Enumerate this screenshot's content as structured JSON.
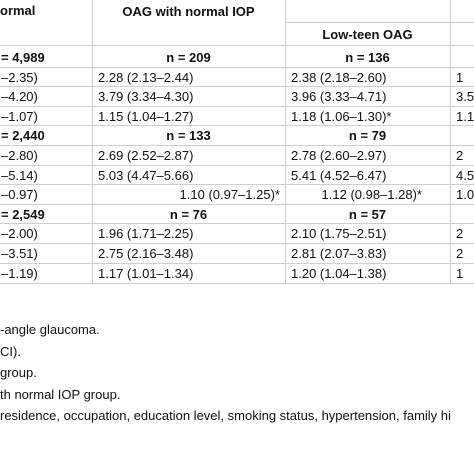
{
  "table": {
    "header": {
      "col0": "ormal",
      "col1": "OAG with normal IOP",
      "col2": "Low-teen OAG"
    },
    "rows": [
      [
        "= 4,989",
        "n = 209",
        "n = 136",
        ""
      ],
      [
        "–2.35)",
        "2.28 (2.13–2.44)",
        "2.38 (2.18–2.60)",
        "1"
      ],
      [
        "–4.20)",
        "3.79 (3.34–4.30)",
        "3.96 (3.33–4.71)",
        "3.5"
      ],
      [
        "–1.07)",
        "1.15 (1.04–1.27)",
        "1.18 (1.06–1.30)*",
        "1.1"
      ],
      [
        "= 2,440",
        "n = 133",
        "n = 79",
        ""
      ],
      [
        "–2.80)",
        "2.69 (2.52–2.87)",
        "2.78 (2.60–2.97)",
        "2"
      ],
      [
        "–5.14)",
        "5.03 (4.47–5.66)",
        "5.41 (4.52–6.47)",
        "4.5"
      ],
      [
        "–0.97)",
        "1.10 (0.97–1.25)*",
        "1.12 (0.98–1.28)*",
        "1.0"
      ],
      [
        "= 2,549",
        "n = 76",
        "n = 57",
        ""
      ],
      [
        "–2.00)",
        "1.96 (1.71–2.25)",
        "2.10 (1.75–2.51)",
        "2"
      ],
      [
        "–3.51)",
        "2.75 (2.16–3.48)",
        "2.81 (2.07–3.83)",
        "2"
      ],
      [
        "–1.19)",
        "1.17 (1.01–1.34)",
        "1.20 (1.04–1.38)",
        "1"
      ]
    ],
    "notes": [
      "-angle glaucoma.",
      "CI).",
      "group.",
      "th normal IOP group.",
      "residence, occupation, education level, smoking status, hypertension, family hi"
    ]
  }
}
